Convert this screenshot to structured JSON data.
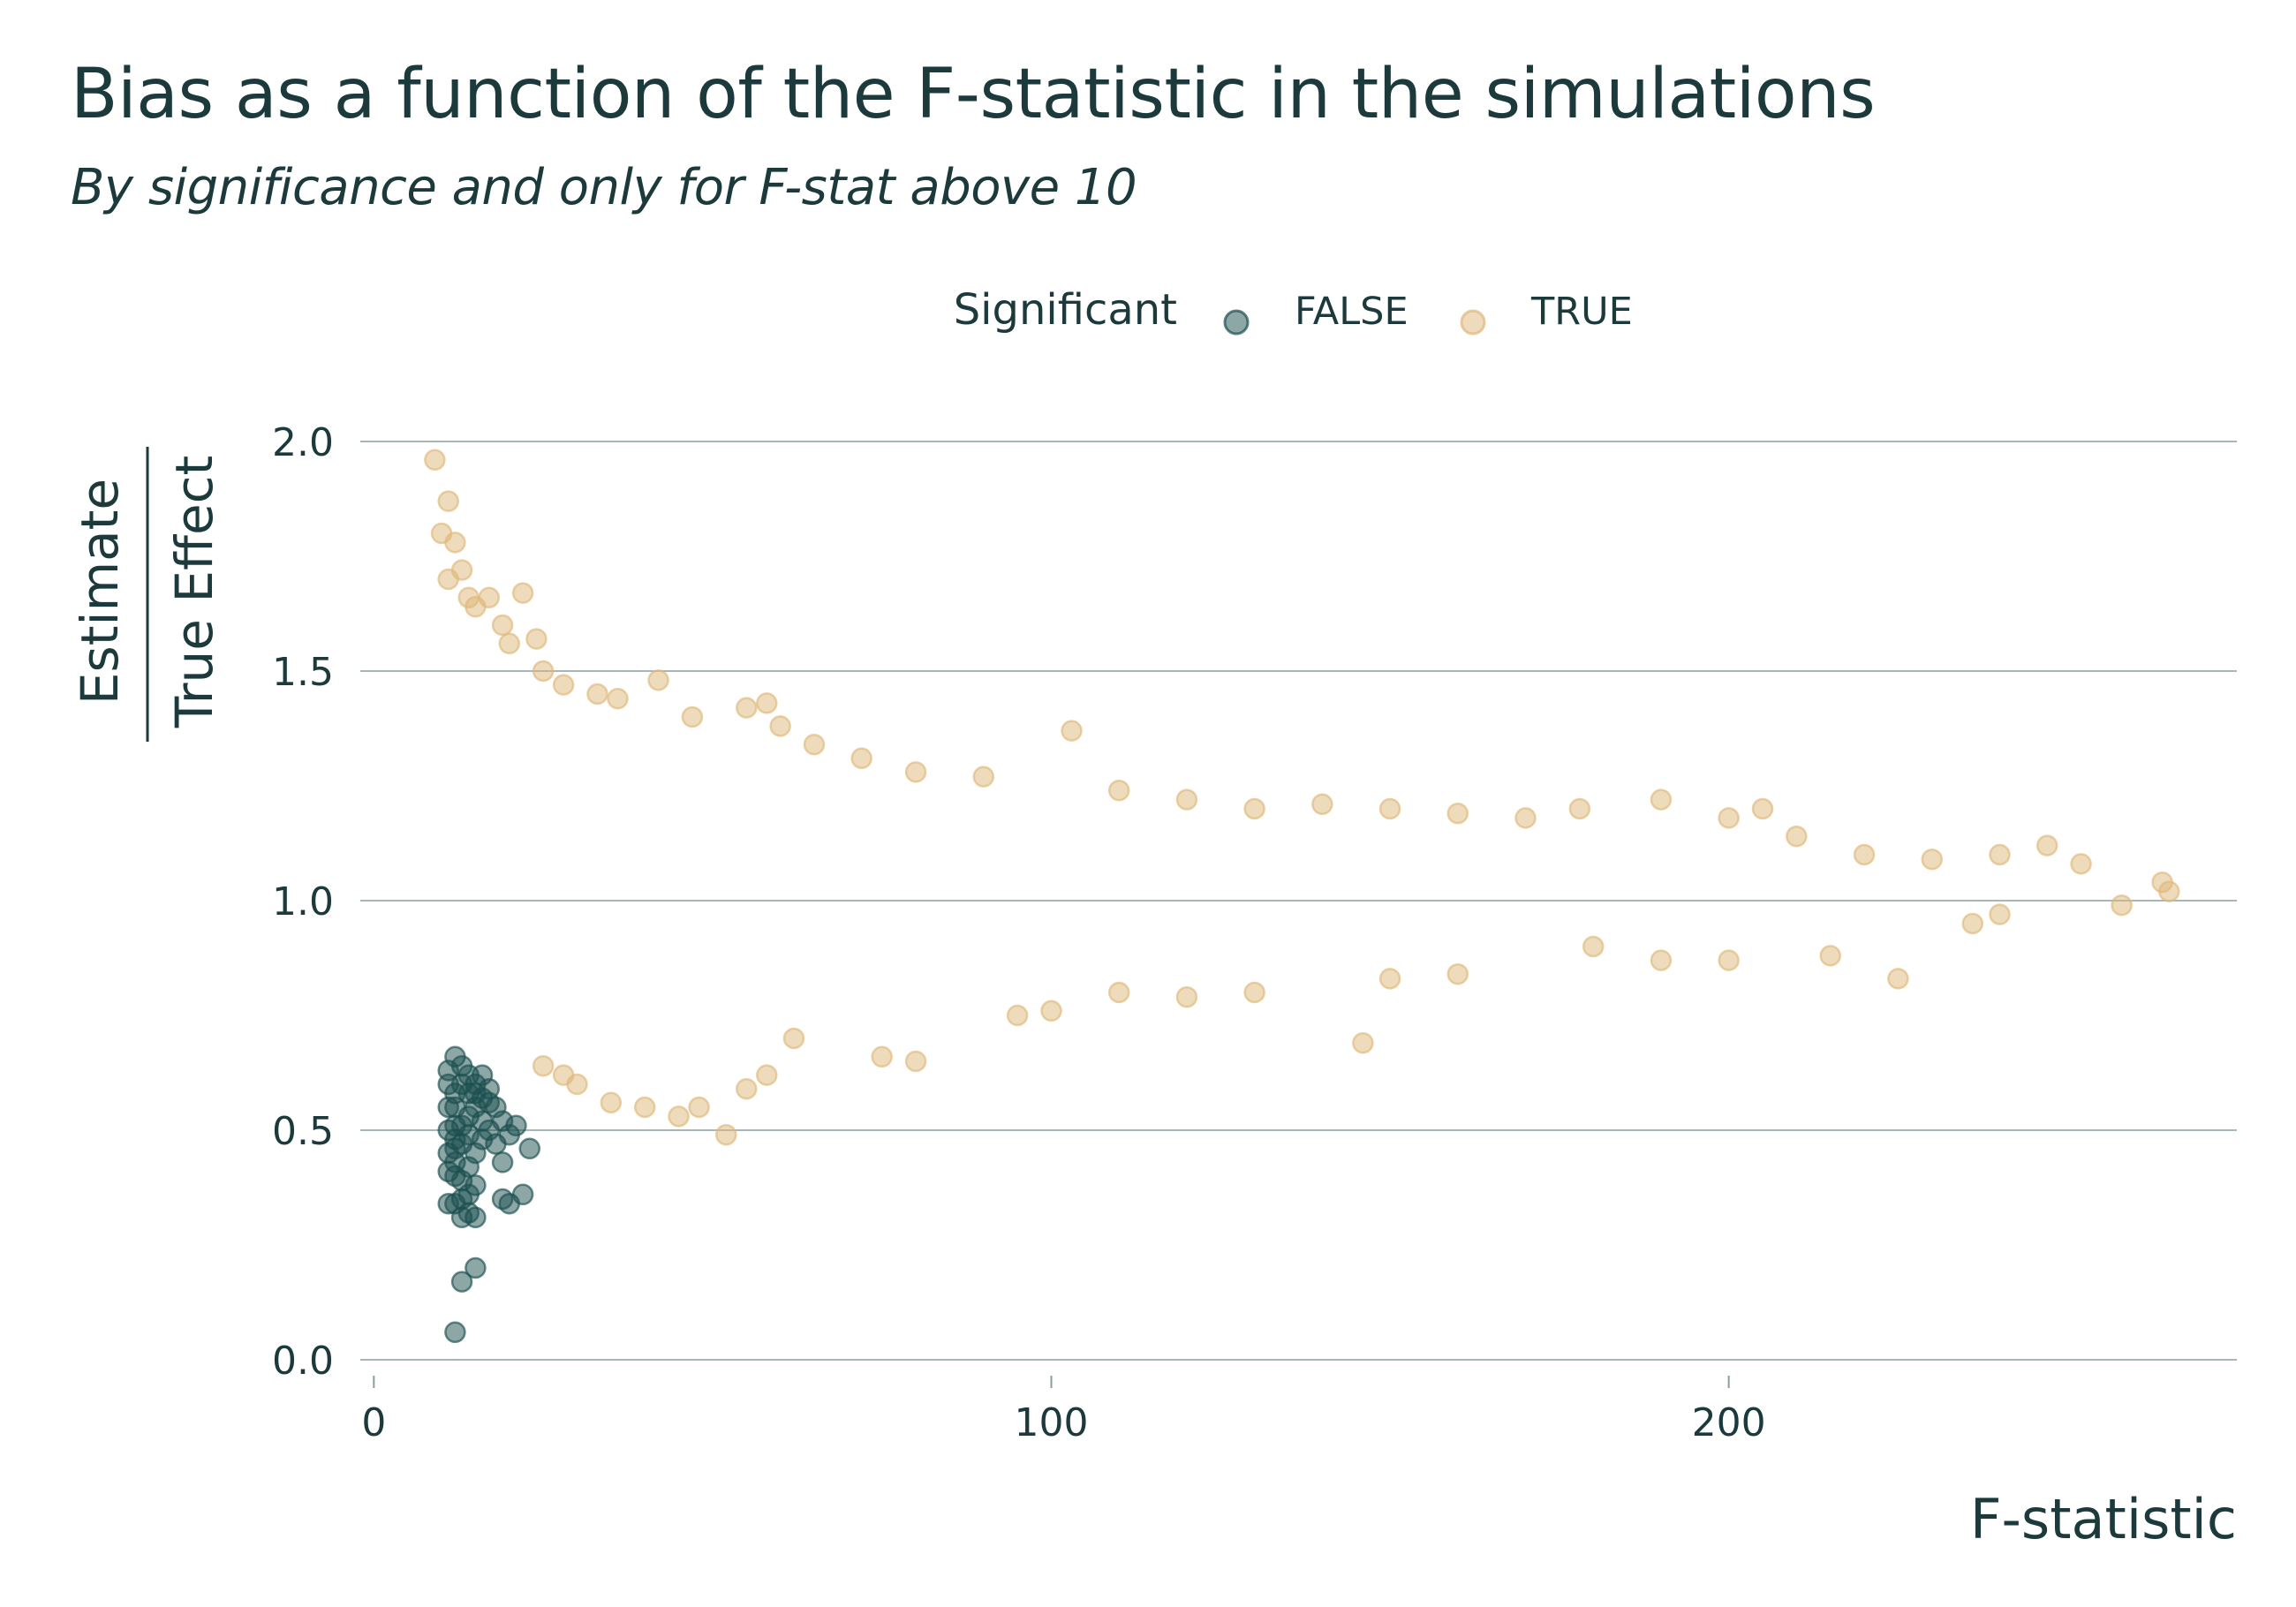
{
  "chart_data": {
    "type": "scatter",
    "title": "Bias as a function of the F-statistic in the simulations",
    "subtitle": "By significance and only for F-stat above 10",
    "xlabel": "F-statistic",
    "ylabel_numerator": "Estimate",
    "ylabel_denominator": "True Effect",
    "xlim": [
      -2,
      275
    ],
    "ylim": [
      0,
      2.0
    ],
    "x_ticks": [
      0,
      100,
      200
    ],
    "x_tick_labels": [
      "0",
      "100",
      "200"
    ],
    "y_ticks": [
      0,
      0.5,
      1.0,
      1.5,
      2.0
    ],
    "y_tick_labels": [
      "0.0",
      "0.5",
      "1.0",
      "1.5",
      "2.0"
    ],
    "grid": "horizontal",
    "legend": {
      "position": "top",
      "title": "Significant",
      "entries": [
        "FALSE",
        "TRUE"
      ]
    },
    "colors": {
      "FALSE": "#1b4f4f",
      "TRUE": "#deb87a",
      "text": "#1c3a3c",
      "grid": "#8a9e9e"
    },
    "series": [
      {
        "name": "FALSE",
        "points": [
          [
            12,
            0.06
          ],
          [
            13,
            0.17
          ],
          [
            15,
            0.2
          ],
          [
            11,
            0.34
          ],
          [
            12,
            0.34
          ],
          [
            13,
            0.31
          ],
          [
            14,
            0.32
          ],
          [
            15,
            0.31
          ],
          [
            14,
            0.36
          ],
          [
            13,
            0.39
          ],
          [
            12,
            0.43
          ],
          [
            11,
            0.45
          ],
          [
            12,
            0.48
          ],
          [
            13,
            0.51
          ],
          [
            14,
            0.53
          ],
          [
            15,
            0.55
          ],
          [
            11,
            0.55
          ],
          [
            12,
            0.58
          ],
          [
            13,
            0.6
          ],
          [
            14,
            0.62
          ],
          [
            15,
            0.58
          ],
          [
            16,
            0.57
          ],
          [
            17,
            0.56
          ],
          [
            18,
            0.55
          ],
          [
            19,
            0.52
          ],
          [
            20,
            0.49
          ],
          [
            21,
            0.51
          ],
          [
            22,
            0.36
          ],
          [
            20,
            0.34
          ],
          [
            19,
            0.35
          ],
          [
            19,
            0.43
          ],
          [
            23,
            0.46
          ],
          [
            16,
            0.48
          ],
          [
            11,
            0.5
          ],
          [
            12,
            0.46
          ],
          [
            13,
            0.47
          ],
          [
            16,
            0.52
          ],
          [
            17,
            0.5
          ],
          [
            12,
            0.55
          ],
          [
            11,
            0.6
          ],
          [
            13,
            0.64
          ],
          [
            12,
            0.66
          ],
          [
            14,
            0.58
          ],
          [
            15,
            0.6
          ],
          [
            11,
            0.63
          ],
          [
            16,
            0.62
          ],
          [
            12,
            0.4
          ],
          [
            14,
            0.42
          ],
          [
            13,
            0.35
          ],
          [
            15,
            0.38
          ],
          [
            18,
            0.47
          ],
          [
            14,
            0.49
          ],
          [
            12,
            0.51
          ],
          [
            11,
            0.41
          ],
          [
            17,
            0.59
          ],
          [
            15,
            0.45
          ]
        ]
      },
      {
        "name": "TRUE",
        "points": [
          [
            9,
            1.96
          ],
          [
            11,
            1.87
          ],
          [
            10,
            1.8
          ],
          [
            12,
            1.78
          ],
          [
            11,
            1.7
          ],
          [
            13,
            1.72
          ],
          [
            14,
            1.66
          ],
          [
            15,
            1.64
          ],
          [
            17,
            1.66
          ],
          [
            19,
            1.6
          ],
          [
            20,
            1.56
          ],
          [
            22,
            1.67
          ],
          [
            24,
            1.57
          ],
          [
            25,
            1.5
          ],
          [
            28,
            1.47
          ],
          [
            33,
            1.45
          ],
          [
            36,
            1.44
          ],
          [
            42,
            1.48
          ],
          [
            47,
            1.4
          ],
          [
            55,
            1.42
          ],
          [
            58,
            1.43
          ],
          [
            60,
            1.38
          ],
          [
            65,
            1.34
          ],
          [
            72,
            1.31
          ],
          [
            80,
            1.28
          ],
          [
            90,
            1.27
          ],
          [
            103,
            1.37
          ],
          [
            110,
            1.24
          ],
          [
            120,
            1.22
          ],
          [
            130,
            1.2
          ],
          [
            140,
            1.21
          ],
          [
            150,
            1.2
          ],
          [
            160,
            1.19
          ],
          [
            170,
            1.18
          ],
          [
            178,
            1.2
          ],
          [
            190,
            1.22
          ],
          [
            200,
            1.18
          ],
          [
            205,
            1.2
          ],
          [
            210,
            1.14
          ],
          [
            220,
            1.1
          ],
          [
            230,
            1.09
          ],
          [
            240,
            1.1
          ],
          [
            247,
            1.12
          ],
          [
            252,
            1.08
          ],
          [
            264,
            1.04
          ],
          [
            265,
            1.02
          ],
          [
            258,
            0.99
          ],
          [
            240,
            0.97
          ],
          [
            236,
            0.95
          ],
          [
            225,
            0.83
          ],
          [
            215,
            0.88
          ],
          [
            200,
            0.87
          ],
          [
            190,
            0.87
          ],
          [
            180,
            0.9
          ],
          [
            160,
            0.84
          ],
          [
            150,
            0.83
          ],
          [
            146,
            0.69
          ],
          [
            130,
            0.8
          ],
          [
            120,
            0.79
          ],
          [
            110,
            0.8
          ],
          [
            100,
            0.76
          ],
          [
            95,
            0.75
          ],
          [
            80,
            0.65
          ],
          [
            75,
            0.66
          ],
          [
            62,
            0.7
          ],
          [
            58,
            0.62
          ],
          [
            55,
            0.59
          ],
          [
            52,
            0.49
          ],
          [
            48,
            0.55
          ],
          [
            45,
            0.53
          ],
          [
            40,
            0.55
          ],
          [
            35,
            0.56
          ],
          [
            30,
            0.6
          ],
          [
            28,
            0.62
          ],
          [
            25,
            0.64
          ]
        ]
      }
    ]
  }
}
